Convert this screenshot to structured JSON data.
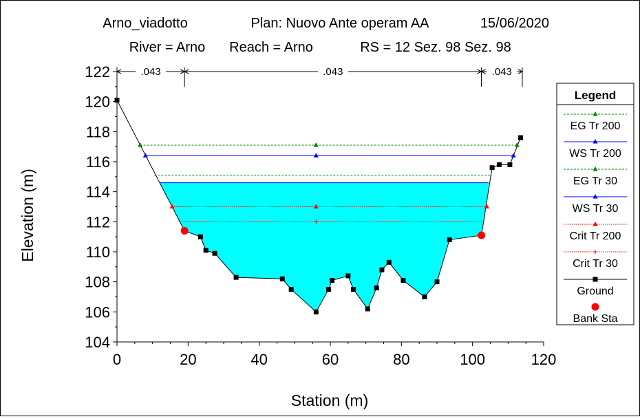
{
  "header": {
    "line1": [
      "Arno_viadotto",
      "Plan: Nuovo Ante operam AA",
      "15/06/2020"
    ],
    "line2": [
      "River = Arno",
      "Reach = Arno",
      "RS = 12  Sez. 98  Sez. 98"
    ]
  },
  "chart_data": {
    "type": "line",
    "xlabel": "Station (m)",
    "ylabel": "Elevation (m)",
    "xlim": [
      0,
      120
    ],
    "ylim": [
      104,
      122
    ],
    "x_ticks": [
      "0",
      "20",
      "40",
      "60",
      "80",
      "100",
      "120"
    ],
    "y_ticks": [
      "104",
      "106",
      "108",
      "110",
      "112",
      "114",
      "116",
      "118",
      "120",
      "122"
    ],
    "mannings": {
      "labels": [
        ".043",
        ".043",
        ".043"
      ],
      "breaks": [
        0,
        19,
        102.5,
        114
      ]
    },
    "ground": {
      "x": [
        0,
        19,
        23.5,
        25,
        27.5,
        33.5,
        46.5,
        49,
        56,
        59.5,
        60.5,
        65,
        66.5,
        70.5,
        73,
        74.5,
        76.5,
        80.5,
        86.5,
        90,
        93.5,
        102.5,
        105.5,
        107.5,
        110.5,
        113.5
      ],
      "y": [
        120.1,
        111.4,
        111.0,
        110.1,
        109.9,
        108.3,
        108.2,
        107.5,
        106.0,
        107.5,
        108.1,
        108.4,
        107.5,
        106.2,
        107.6,
        108.8,
        109.3,
        108.1,
        107.0,
        108.0,
        110.8,
        111.1,
        115.6,
        115.8,
        115.8,
        117.6
      ]
    },
    "bank_stations": {
      "x": [
        19,
        102.5
      ],
      "y": [
        111.4,
        111.1
      ]
    },
    "series": [
      {
        "name": "EG Tr 200",
        "elevation": 117.1,
        "x_range": [
          6.5,
          112.5
        ],
        "markers_x": [
          6.5,
          56,
          112.5
        ],
        "color": "#008000",
        "dash": "dashed",
        "marker": "triangle"
      },
      {
        "name": "WS Tr 200",
        "elevation": 116.4,
        "x_range": [
          8,
          111.5
        ],
        "markers_x": [
          8,
          56,
          111.5
        ],
        "color": "#0000ff",
        "dash": "solid",
        "marker": "triangle"
      },
      {
        "name": "EG Tr 30",
        "elevation": 115.1,
        "x_range": [
          10.5,
          105.5
        ],
        "markers_x": [],
        "color": "#008000",
        "dash": "dashed",
        "marker": "none"
      },
      {
        "name": "WS Tr 30",
        "elevation": 114.6,
        "x_range": [
          12,
          104.5
        ],
        "markers_x": [],
        "color": "#0000ff",
        "dash": "solid",
        "marker": "none",
        "fill": "#00ffff"
      },
      {
        "name": "Crit Tr 200",
        "elevation": 113.0,
        "x_range": [
          15.5,
          104
        ],
        "markers_x": [
          15.5,
          56,
          104
        ],
        "color": "#ff0000",
        "dash": "dotted",
        "marker": "triangle"
      },
      {
        "name": "Crit Tr 30",
        "elevation": 112.0,
        "x_range": [
          17,
          103.5
        ],
        "markers_x": [
          56
        ],
        "color": "#ff0000",
        "dash": "dotted",
        "marker": "plus"
      }
    ],
    "legend": {
      "title": "Legend",
      "placement": "right",
      "items": [
        "EG Tr 200",
        "WS Tr 200",
        "EG Tr 30",
        "WS Tr 30",
        "Crit Tr 200",
        "Crit Tr 30",
        "Ground",
        "Bank Sta"
      ]
    }
  }
}
